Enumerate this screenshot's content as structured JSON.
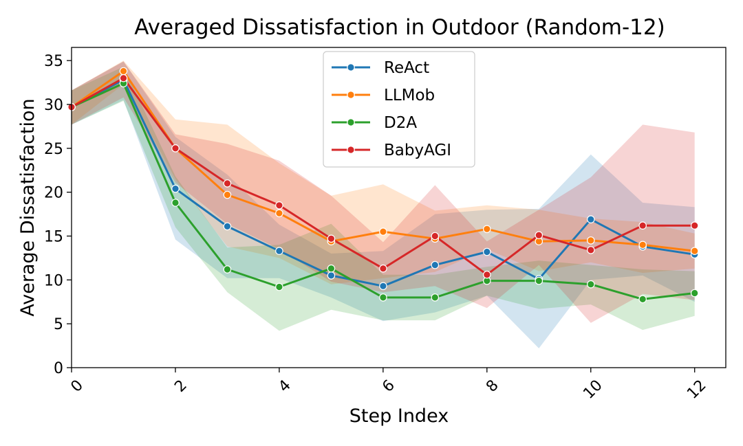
{
  "chart_data": {
    "type": "line",
    "title": "Averaged Dissatisfaction in Outdoor (Random-12)",
    "xlabel": "Step Index",
    "ylabel": "Average Dissatisfaction",
    "xlim": [
      0,
      12.6
    ],
    "ylim": [
      0,
      36.5
    ],
    "x_ticks": [
      0,
      2,
      4,
      6,
      8,
      10,
      12
    ],
    "y_ticks": [
      0,
      5,
      10,
      15,
      20,
      25,
      30,
      35
    ],
    "x_tick_rotation": 45,
    "grid": false,
    "legend_position": "upper center",
    "x": [
      0,
      1,
      2,
      3,
      4,
      5,
      6,
      7,
      8,
      9,
      10,
      11,
      12
    ],
    "series": [
      {
        "name": "ReAct",
        "color": "#1f77b4",
        "values": [
          29.7,
          32.8,
          20.4,
          16.1,
          13.3,
          10.5,
          9.3,
          11.7,
          13.2,
          10.1,
          16.9,
          13.8,
          12.9
        ],
        "band_low": [
          27.7,
          30.5,
          14.6,
          10.2,
          10.2,
          8.0,
          5.3,
          6.3,
          8.2,
          2.2,
          10.0,
          10.5,
          7.5
        ],
        "band_high": [
          31.6,
          34.9,
          26.3,
          22.0,
          16.3,
          13.0,
          13.3,
          17.5,
          18.0,
          18.1,
          24.3,
          18.8,
          18.3
        ]
      },
      {
        "name": "LLMob",
        "color": "#ff7f0e",
        "values": [
          29.7,
          33.8,
          25.0,
          19.7,
          17.6,
          14.4,
          15.5,
          14.7,
          15.8,
          14.4,
          14.5,
          14.0,
          13.3
        ],
        "band_low": [
          27.7,
          32.3,
          21.5,
          13.8,
          12.5,
          9.5,
          10.2,
          10.9,
          13.5,
          11.0,
          12.0,
          10.8,
          11.3
        ],
        "band_high": [
          31.6,
          35.0,
          28.3,
          27.7,
          23.3,
          19.6,
          20.9,
          17.9,
          18.5,
          18.0,
          17.0,
          16.6,
          15.3
        ]
      },
      {
        "name": "D2A",
        "color": "#2ca02c",
        "values": [
          29.7,
          32.4,
          18.8,
          11.2,
          9.2,
          11.3,
          8.0,
          8.0,
          9.9,
          9.9,
          9.5,
          7.8,
          8.5
        ],
        "band_low": [
          27.7,
          30.4,
          16.0,
          8.6,
          4.2,
          6.6,
          5.4,
          5.4,
          8.2,
          6.7,
          7.2,
          4.3,
          5.9
        ],
        "band_high": [
          31.6,
          34.3,
          21.8,
          13.7,
          14.0,
          16.4,
          10.6,
          10.6,
          11.5,
          12.2,
          11.7,
          11.2,
          11.0
        ]
      },
      {
        "name": "BabyAGI",
        "color": "#d62728",
        "values": [
          29.7,
          33.0,
          25.0,
          21.0,
          18.5,
          14.7,
          11.3,
          15.0,
          10.6,
          15.1,
          13.4,
          16.2,
          16.2
        ],
        "band_low": [
          27.7,
          30.8,
          21.1,
          16.4,
          13.5,
          9.8,
          8.6,
          9.3,
          6.8,
          11.7,
          5.1,
          8.4,
          7.7
        ],
        "band_high": [
          31.6,
          34.9,
          26.6,
          25.5,
          23.6,
          19.6,
          14.3,
          20.8,
          14.4,
          18.0,
          21.7,
          27.7,
          26.8
        ]
      }
    ]
  }
}
